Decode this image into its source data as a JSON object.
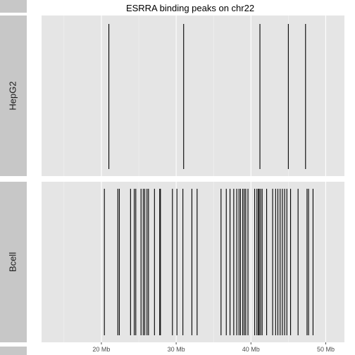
{
  "chart_data": {
    "type": "genome-track",
    "title": "ESRRA binding peaks on chr22",
    "x_axis": {
      "ticks": [
        {
          "value": 20,
          "label": "20 Mb"
        },
        {
          "value": 30,
          "label": "30 Mb"
        },
        {
          "value": 40,
          "label": "40 Mb"
        },
        {
          "value": 50,
          "label": "50 Mb"
        }
      ],
      "minor_ticks": [
        15,
        25,
        35,
        45
      ],
      "range": [
        12.0,
        52.5
      ],
      "unit": "Mb"
    },
    "grid": true,
    "panel_background": "#e5e5e5",
    "strip_background": "#c7c7c7",
    "peak_color": "#000000",
    "tracks": [
      {
        "name": "HepG2",
        "peaks": [
          21.0,
          31.0,
          41.2,
          45.0,
          47.3
        ]
      },
      {
        "name": "Bcell",
        "peaks": [
          20.4,
          22.2,
          22.4,
          23.9,
          24.4,
          24.6,
          25.3,
          25.6,
          25.8,
          26.1,
          26.3,
          27.1,
          27.8,
          27.9,
          29.5,
          30.1,
          30.9,
          32.1,
          32.8,
          36.0,
          36.7,
          37.2,
          37.7,
          38.1,
          38.4,
          38.6,
          38.9,
          39.1,
          39.3,
          39.6,
          40.5,
          40.8,
          41.0,
          41.1,
          41.3,
          41.5,
          42.1,
          42.9,
          43.3,
          43.6,
          43.9,
          44.2,
          44.5,
          44.8,
          45.3,
          46.3,
          47.5,
          47.7,
          48.3
        ]
      }
    ]
  }
}
